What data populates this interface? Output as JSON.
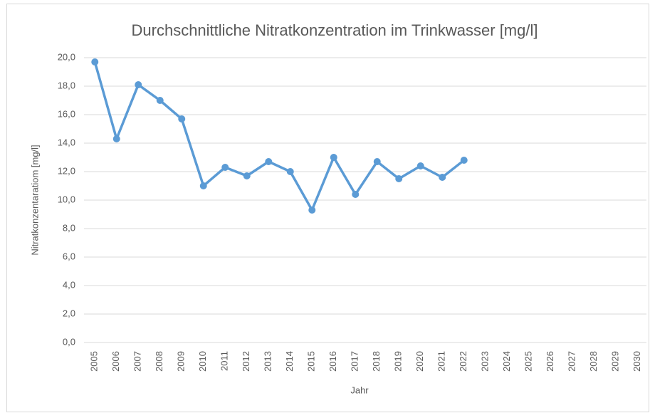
{
  "chart_data": {
    "type": "line",
    "title": "Durchschnittliche Nitratkonzentration im Trinkwasser [mg/l]",
    "x_label": "Jahr",
    "y_label": "Nitratkonzentaratiom [mg/l]",
    "categories": [
      "2005",
      "2006",
      "2007",
      "2008",
      "2009",
      "2010",
      "2011",
      "2012",
      "2013",
      "2014",
      "2015",
      "2016",
      "2017",
      "2018",
      "2019",
      "2020",
      "2021",
      "2022",
      "2023",
      "2024",
      "2025",
      "2026",
      "2027",
      "2028",
      "2029",
      "2030"
    ],
    "values": [
      19.7,
      14.3,
      18.1,
      17.0,
      15.7,
      11.0,
      12.3,
      11.7,
      12.7,
      12.0,
      9.3,
      13.0,
      10.4,
      12.7,
      11.5,
      12.4,
      11.6,
      12.8,
      null,
      null,
      null,
      null,
      null,
      null,
      null,
      null
    ],
    "color": "#5b9bd5",
    "ylim": [
      0,
      20
    ],
    "yticks": [
      {
        "value": 0,
        "label": "0,0"
      },
      {
        "value": 2,
        "label": "2,0"
      },
      {
        "value": 4,
        "label": "4,0"
      },
      {
        "value": 6,
        "label": "6,0"
      },
      {
        "value": 8,
        "label": "8,0"
      },
      {
        "value": 10,
        "label": "10,0"
      },
      {
        "value": 12,
        "label": "12,0"
      },
      {
        "value": 14,
        "label": "14,0"
      },
      {
        "value": 16,
        "label": "16,0"
      },
      {
        "value": 18,
        "label": "18,0"
      },
      {
        "value": 20,
        "label": "20,0"
      }
    ],
    "grid": true
  }
}
